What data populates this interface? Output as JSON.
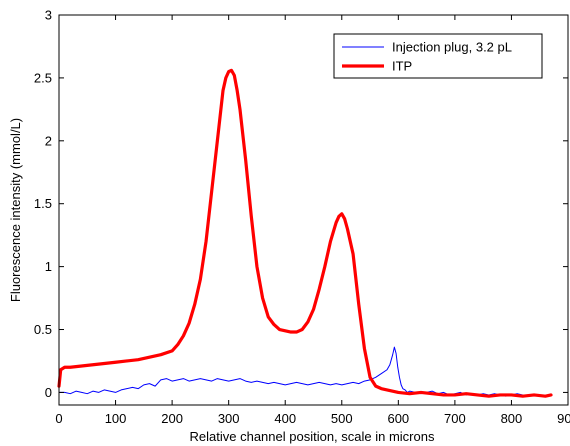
{
  "chart_data": {
    "type": "line",
    "title": "",
    "xlabel": "Relative channel position, scale in microns",
    "ylabel": "Fluorescence intensity (mmol/L)",
    "xlim": [
      0,
      900
    ],
    "ylim": [
      -0.1,
      3
    ],
    "x_ticks": [
      0,
      100,
      200,
      300,
      400,
      500,
      600,
      700,
      800,
      900
    ],
    "y_ticks": [
      0,
      0.5,
      1,
      1.5,
      2,
      2.5,
      3
    ],
    "x_tick_labels": [
      "0",
      "100",
      "200",
      "300",
      "400",
      "500",
      "600",
      "700",
      "800",
      "900"
    ],
    "y_tick_labels": [
      "0",
      "0.5",
      "1",
      "1.5",
      "2",
      "2.5",
      "3"
    ],
    "grid": false,
    "legend_position": "top-right",
    "series": [
      {
        "name": "Injection plug, 3.2 pL",
        "color": "#0000ff",
        "line_style": "thin",
        "x": [
          0,
          10,
          20,
          30,
          40,
          50,
          60,
          70,
          80,
          90,
          100,
          110,
          120,
          130,
          140,
          150,
          160,
          170,
          180,
          190,
          200,
          210,
          220,
          230,
          240,
          250,
          260,
          270,
          280,
          290,
          300,
          310,
          320,
          330,
          340,
          350,
          360,
          370,
          380,
          390,
          400,
          410,
          420,
          430,
          440,
          450,
          460,
          470,
          480,
          490,
          500,
          510,
          520,
          530,
          540,
          550,
          560,
          570,
          580,
          585,
          590,
          593,
          596,
          599,
          602,
          605,
          608,
          612,
          616,
          620,
          630,
          640,
          650,
          660,
          670,
          680,
          690,
          700,
          710,
          720,
          730,
          740,
          750,
          760,
          770,
          780,
          790,
          800,
          810,
          820,
          830,
          840,
          850,
          860,
          870
        ],
        "y": [
          0.0,
          0.0,
          -0.01,
          0.01,
          0.0,
          -0.01,
          0.01,
          0.0,
          0.02,
          0.01,
          0.0,
          0.02,
          0.03,
          0.04,
          0.03,
          0.06,
          0.07,
          0.05,
          0.1,
          0.11,
          0.09,
          0.1,
          0.11,
          0.09,
          0.1,
          0.11,
          0.1,
          0.09,
          0.11,
          0.1,
          0.09,
          0.1,
          0.11,
          0.09,
          0.08,
          0.09,
          0.08,
          0.07,
          0.08,
          0.07,
          0.06,
          0.07,
          0.08,
          0.07,
          0.06,
          0.07,
          0.08,
          0.07,
          0.06,
          0.07,
          0.06,
          0.07,
          0.08,
          0.07,
          0.09,
          0.1,
          0.12,
          0.15,
          0.18,
          0.22,
          0.3,
          0.36,
          0.31,
          0.2,
          0.12,
          0.06,
          0.03,
          0.02,
          0.0,
          0.01,
          0.0,
          -0.01,
          0.0,
          0.01,
          -0.01,
          0.0,
          -0.02,
          -0.01,
          0.0,
          -0.02,
          -0.01,
          -0.02,
          -0.01,
          -0.02,
          -0.01,
          -0.02,
          -0.03,
          -0.02,
          -0.01,
          -0.02,
          -0.03,
          -0.02,
          -0.02,
          -0.03,
          -0.02
        ]
      },
      {
        "name": "ITP",
        "color": "#ff0000",
        "line_style": "thick",
        "x": [
          0,
          3,
          10,
          20,
          40,
          60,
          80,
          100,
          120,
          140,
          160,
          180,
          200,
          210,
          220,
          230,
          240,
          250,
          260,
          270,
          280,
          290,
          295,
          300,
          305,
          310,
          315,
          320,
          330,
          340,
          350,
          360,
          370,
          380,
          390,
          400,
          410,
          420,
          430,
          440,
          450,
          460,
          470,
          480,
          490,
          495,
          500,
          505,
          510,
          520,
          530,
          540,
          550,
          560,
          570,
          580,
          590,
          600,
          620,
          640,
          660,
          680,
          700,
          720,
          740,
          760,
          780,
          800,
          820,
          840,
          860,
          870
        ],
        "y": [
          0.05,
          0.18,
          0.2,
          0.2,
          0.21,
          0.22,
          0.23,
          0.24,
          0.25,
          0.26,
          0.28,
          0.3,
          0.33,
          0.38,
          0.45,
          0.55,
          0.7,
          0.9,
          1.2,
          1.6,
          2.0,
          2.4,
          2.5,
          2.55,
          2.56,
          2.52,
          2.4,
          2.25,
          1.85,
          1.4,
          1.0,
          0.75,
          0.6,
          0.54,
          0.5,
          0.49,
          0.48,
          0.48,
          0.5,
          0.56,
          0.66,
          0.82,
          1.0,
          1.2,
          1.35,
          1.4,
          1.42,
          1.38,
          1.3,
          1.1,
          0.7,
          0.35,
          0.12,
          0.05,
          0.03,
          0.02,
          0.01,
          0.0,
          -0.01,
          0.0,
          -0.01,
          -0.02,
          -0.02,
          -0.01,
          -0.02,
          -0.03,
          -0.02,
          -0.02,
          -0.03,
          -0.02,
          -0.03,
          -0.02
        ]
      }
    ]
  }
}
